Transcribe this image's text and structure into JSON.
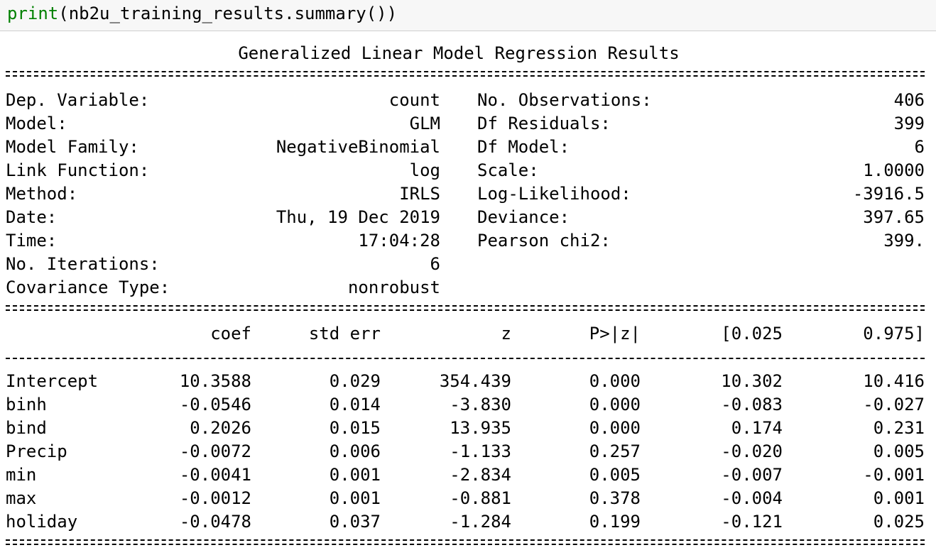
{
  "code_cell": {
    "builtin": "print",
    "rest": "(nb2u_training_results.summary())"
  },
  "summary": {
    "title": "Generalized Linear Model Regression Results",
    "info_rows": [
      {
        "label_left": "Dep. Variable:",
        "value_left": "count",
        "label_right": "No. Observations:",
        "value_right": "406"
      },
      {
        "label_left": "Model:",
        "value_left": "GLM",
        "label_right": "Df Residuals:",
        "value_right": "399"
      },
      {
        "label_left": "Model Family:",
        "value_left": "NegativeBinomial",
        "label_right": "Df Model:",
        "value_right": "6"
      },
      {
        "label_left": "Link Function:",
        "value_left": "log",
        "label_right": "Scale:",
        "value_right": "1.0000"
      },
      {
        "label_left": "Method:",
        "value_left": "IRLS",
        "label_right": "Log-Likelihood:",
        "value_right": "-3916.5"
      },
      {
        "label_left": "Date:",
        "value_left": "Thu, 19 Dec 2019",
        "label_right": "Deviance:",
        "value_right": "397.65"
      },
      {
        "label_left": "Time:",
        "value_left": "17:04:28",
        "label_right": "Pearson chi2:",
        "value_right": "399."
      },
      {
        "label_left": "No. Iterations:",
        "value_left": "6",
        "label_right": "",
        "value_right": ""
      },
      {
        "label_left": "Covariance Type:",
        "value_left": "nonrobust",
        "label_right": "",
        "value_right": ""
      }
    ],
    "coef_header": [
      "",
      "coef",
      "std err",
      "z",
      "P>|z|",
      "[0.025",
      "0.975]"
    ],
    "coef_rows": [
      [
        "Intercept",
        "10.3588",
        "0.029",
        "354.439",
        "0.000",
        "10.302",
        "10.416"
      ],
      [
        "binh",
        "-0.0546",
        "0.014",
        "-3.830",
        "0.000",
        "-0.083",
        "-0.027"
      ],
      [
        "bind",
        "0.2026",
        "0.015",
        "13.935",
        "0.000",
        "0.174",
        "0.231"
      ],
      [
        "Precip",
        "-0.0072",
        "0.006",
        "-1.133",
        "0.257",
        "-0.020",
        "0.005"
      ],
      [
        "min",
        "-0.0041",
        "0.001",
        "-2.834",
        "0.005",
        "-0.007",
        "-0.001"
      ],
      [
        "max",
        "-0.0012",
        "0.001",
        "-0.881",
        "0.378",
        "-0.004",
        "0.001"
      ],
      [
        "holiday",
        "-0.0478",
        "0.037",
        "-1.284",
        "0.199",
        "-0.121",
        "0.025"
      ]
    ]
  },
  "colors": {
    "builtin": "#008000",
    "input_bg": "#f7f7f7"
  }
}
